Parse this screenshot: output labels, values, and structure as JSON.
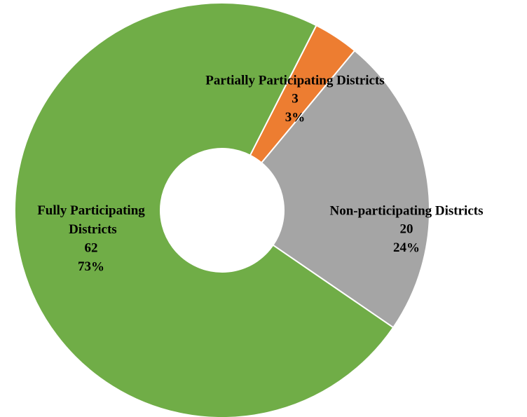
{
  "chart_data": {
    "type": "donut",
    "categories": [
      "Partially Participating Districts",
      "Non-participating Districts",
      "Fully Participating Districts"
    ],
    "values": [
      3,
      20,
      62
    ],
    "percentages": [
      3,
      24,
      73
    ],
    "colors": [
      "#ed7d31",
      "#a5a5a5",
      "#70ad47"
    ]
  }
}
